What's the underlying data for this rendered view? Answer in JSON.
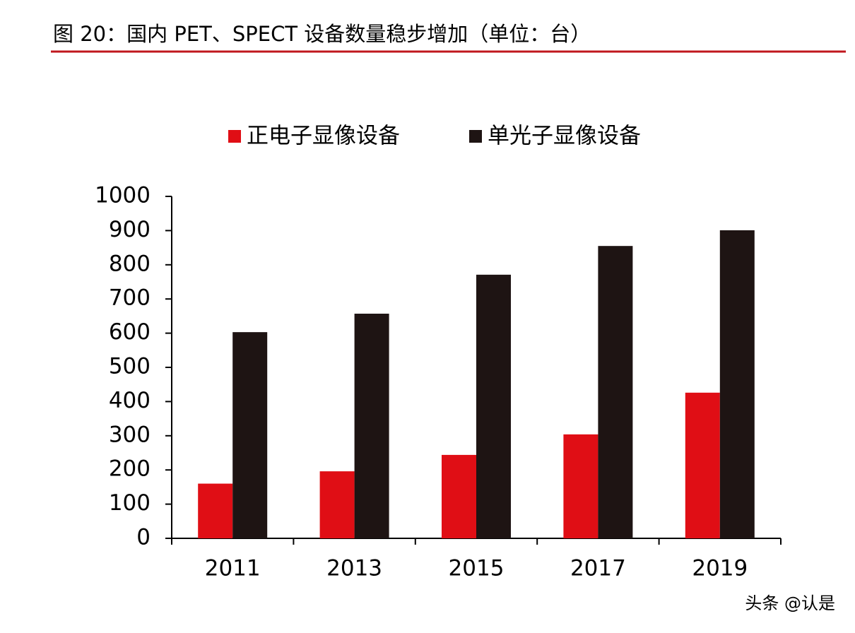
{
  "chart_data": {
    "type": "bar",
    "title": "图 20：国内 PET、SPECT 设备数量稳步增加（单位：台）",
    "categories": [
      "2011",
      "2013",
      "2015",
      "2017",
      "2019"
    ],
    "series": [
      {
        "name": "正电子显像设备",
        "color": "#e00e15",
        "values": [
          160,
          196,
          244,
          304,
          426
        ]
      },
      {
        "name": "单光子显像设备",
        "color": "#1e1413",
        "values": [
          603,
          657,
          771,
          855,
          901
        ]
      }
    ],
    "ylim": [
      0,
      1000
    ],
    "yticks": [
      0,
      100,
      200,
      300,
      400,
      500,
      600,
      700,
      800,
      900,
      1000
    ],
    "grid": false,
    "legend": "top",
    "watermark": "头条 @认是"
  }
}
